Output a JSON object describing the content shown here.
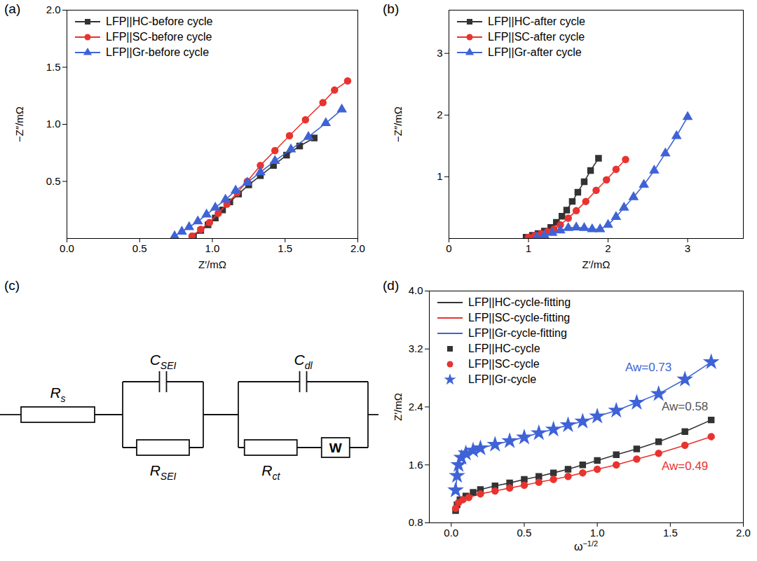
{
  "chart_data": [
    {
      "type": "line",
      "title": "(a)",
      "x_label": "Z′/mΩ",
      "y_label": "−Z″/mΩ",
      "xlim": [
        0,
        2.0
      ],
      "xticks": [
        {
          "value": 0,
          "label": "0.0"
        },
        0.5,
        {
          "value": 1,
          "label": "1.0"
        },
        1.5,
        {
          "value": 2,
          "label": "2.0"
        }
      ],
      "ylim": [
        0,
        2.0
      ],
      "yticks": [
        0.5,
        {
          "value": 1,
          "label": "1.0"
        },
        1.5,
        {
          "value": 2,
          "label": "2.0"
        }
      ],
      "legend": "top-left",
      "series": [
        {
          "name": "LFP||HC-before cycle",
          "color": "#333333",
          "marker": "square",
          "x": [
            0.87,
            0.92,
            0.97,
            1.02,
            1.07,
            1.12,
            1.18,
            1.25,
            1.33,
            1.42,
            1.51,
            1.6,
            1.7
          ],
          "values": [
            0.02,
            0.07,
            0.12,
            0.18,
            0.25,
            0.32,
            0.39,
            0.47,
            0.55,
            0.64,
            0.73,
            0.81,
            0.88
          ]
        },
        {
          "name": "LFP||SC-before cycle",
          "color": "#e8332f",
          "marker": "circle",
          "x": [
            0.86,
            0.92,
            0.98,
            1.04,
            1.1,
            1.17,
            1.24,
            1.33,
            1.43,
            1.53,
            1.64,
            1.76,
            1.84,
            1.93
          ],
          "values": [
            0.02,
            0.08,
            0.14,
            0.22,
            0.3,
            0.4,
            0.5,
            0.64,
            0.77,
            0.9,
            1.04,
            1.19,
            1.3,
            1.38
          ]
        },
        {
          "name": "LFP||Gr-before cycle",
          "color": "#3f63d6",
          "marker": "triangle",
          "x": [
            0.74,
            0.79,
            0.84,
            0.9,
            0.96,
            1.02,
            1.09,
            1.16,
            1.24,
            1.33,
            1.43,
            1.54,
            1.66,
            1.78,
            1.89
          ],
          "values": [
            0.02,
            0.06,
            0.1,
            0.15,
            0.21,
            0.27,
            0.34,
            0.42,
            0.49,
            0.58,
            0.68,
            0.78,
            0.89,
            1.01,
            1.13
          ]
        }
      ]
    },
    {
      "type": "line",
      "title": "(b)",
      "x_label": "Z′/mΩ",
      "y_label": "−Z″/mΩ",
      "xlim": [
        0,
        3.7
      ],
      "xticks": [
        0,
        1,
        2,
        3
      ],
      "ylim": [
        0,
        3.7
      ],
      "yticks": [
        1,
        2,
        3
      ],
      "legend": "top-left",
      "series": [
        {
          "name": "LFP||HC-after cycle",
          "color": "#333333",
          "marker": "square",
          "x": [
            0.97,
            1.05,
            1.12,
            1.2,
            1.28,
            1.35,
            1.42,
            1.48,
            1.55,
            1.62,
            1.7,
            1.78,
            1.88
          ],
          "values": [
            0.02,
            0.05,
            0.08,
            0.12,
            0.18,
            0.26,
            0.36,
            0.46,
            0.6,
            0.75,
            0.92,
            1.1,
            1.3
          ]
        },
        {
          "name": "LFP||SC-after cycle",
          "color": "#e8332f",
          "marker": "circle",
          "x": [
            1.0,
            1.08,
            1.16,
            1.24,
            1.32,
            1.4,
            1.5,
            1.6,
            1.72,
            1.85,
            1.98,
            2.1,
            2.22
          ],
          "values": [
            0.02,
            0.05,
            0.08,
            0.11,
            0.15,
            0.22,
            0.33,
            0.45,
            0.6,
            0.78,
            0.95,
            1.12,
            1.28
          ]
        },
        {
          "name": "LFP||Gr-after cycle",
          "color": "#3f63d6",
          "marker": "triangle",
          "x": [
            1.1,
            1.2,
            1.3,
            1.4,
            1.5,
            1.6,
            1.7,
            1.8,
            1.9,
            2.0,
            2.1,
            2.2,
            2.32,
            2.45,
            2.58,
            2.72,
            2.86,
            3.0
          ],
          "values": [
            0.02,
            0.05,
            0.09,
            0.13,
            0.17,
            0.18,
            0.17,
            0.15,
            0.15,
            0.22,
            0.35,
            0.5,
            0.67,
            0.87,
            1.1,
            1.38,
            1.66,
            1.97
          ]
        }
      ]
    },
    {
      "type": "scatter",
      "title": "(d)",
      "x_label": "ω−1/2",
      "y_label": "Z′/mΩ",
      "xlim": [
        -0.15,
        2.0
      ],
      "xticks": [
        {
          "value": 0,
          "label": "0.0"
        },
        0.5,
        {
          "value": 1,
          "label": "1.0"
        },
        1.5,
        {
          "value": 2,
          "label": "2.0"
        }
      ],
      "ylim": [
        0.8,
        4.0
      ],
      "yticks": [
        0.8,
        1.6,
        2.4,
        3.2,
        {
          "value": 4,
          "label": "4.0"
        }
      ],
      "legend": "top-left",
      "series": [
        {
          "name": "LFP||HC-cycle-fitting",
          "type": "line",
          "color": "#333333",
          "x": [
            0.03,
            0.04,
            0.06,
            0.1,
            0.15,
            0.2,
            0.3,
            0.4,
            0.5,
            0.6,
            0.7,
            0.8,
            0.9,
            1.0,
            1.13,
            1.27,
            1.42,
            1.6,
            1.78
          ],
          "values": [
            0.97,
            1.05,
            1.12,
            1.17,
            1.22,
            1.26,
            1.31,
            1.35,
            1.4,
            1.44,
            1.49,
            1.54,
            1.6,
            1.66,
            1.74,
            1.82,
            1.92,
            2.06,
            2.22
          ]
        },
        {
          "name": "LFP||SC-cycle-fitting",
          "type": "line",
          "color": "#e8332f",
          "x": [
            0.03,
            0.05,
            0.08,
            0.12,
            0.2,
            0.3,
            0.4,
            0.5,
            0.6,
            0.7,
            0.8,
            0.9,
            1.0,
            1.13,
            1.27,
            1.42,
            1.6,
            1.78
          ],
          "values": [
            1.0,
            1.08,
            1.12,
            1.15,
            1.2,
            1.24,
            1.28,
            1.32,
            1.36,
            1.4,
            1.44,
            1.49,
            1.54,
            1.6,
            1.68,
            1.76,
            1.87,
            1.99
          ]
        },
        {
          "name": "LFP||Gr-cycle-fitting",
          "type": "line",
          "color": "#3f63d6",
          "x": [
            0.03,
            0.04,
            0.05,
            0.07,
            0.1,
            0.15,
            0.2,
            0.3,
            0.4,
            0.5,
            0.6,
            0.7,
            0.8,
            0.9,
            1.0,
            1.13,
            1.27,
            1.42,
            1.6,
            1.78
          ],
          "values": [
            1.25,
            1.45,
            1.6,
            1.7,
            1.76,
            1.8,
            1.83,
            1.88,
            1.93,
            1.98,
            2.04,
            2.09,
            2.15,
            2.2,
            2.27,
            2.35,
            2.46,
            2.58,
            2.78,
            3.02
          ]
        },
        {
          "name": "LFP||HC-cycle",
          "type": "scatter",
          "color": "#333333",
          "marker": "square",
          "x": [
            0.03,
            0.04,
            0.06,
            0.1,
            0.15,
            0.2,
            0.3,
            0.4,
            0.5,
            0.6,
            0.7,
            0.8,
            0.9,
            1.0,
            1.13,
            1.27,
            1.42,
            1.6,
            1.78
          ],
          "values": [
            0.97,
            1.05,
            1.12,
            1.17,
            1.22,
            1.26,
            1.31,
            1.35,
            1.4,
            1.44,
            1.49,
            1.54,
            1.6,
            1.66,
            1.74,
            1.82,
            1.92,
            2.06,
            2.22
          ]
        },
        {
          "name": "LFP||SC-cycle",
          "type": "scatter",
          "color": "#e8332f",
          "marker": "circle",
          "x": [
            0.03,
            0.05,
            0.08,
            0.12,
            0.2,
            0.3,
            0.4,
            0.5,
            0.6,
            0.7,
            0.8,
            0.9,
            1.0,
            1.13,
            1.27,
            1.42,
            1.6,
            1.78
          ],
          "values": [
            1.0,
            1.08,
            1.12,
            1.15,
            1.2,
            1.24,
            1.28,
            1.32,
            1.36,
            1.4,
            1.44,
            1.49,
            1.54,
            1.6,
            1.68,
            1.76,
            1.87,
            1.99
          ]
        },
        {
          "name": "LFP||Gr-cycle",
          "type": "scatter",
          "color": "#3f63d6",
          "marker": "star",
          "x": [
            0.03,
            0.04,
            0.05,
            0.07,
            0.1,
            0.15,
            0.2,
            0.3,
            0.4,
            0.5,
            0.6,
            0.7,
            0.8,
            0.9,
            1.0,
            1.13,
            1.27,
            1.42,
            1.6,
            1.78
          ],
          "values": [
            1.25,
            1.45,
            1.6,
            1.7,
            1.76,
            1.8,
            1.83,
            1.88,
            1.93,
            1.98,
            2.04,
            2.09,
            2.15,
            2.2,
            2.27,
            2.35,
            2.46,
            2.58,
            2.78,
            3.02
          ]
        }
      ],
      "annotations": [
        {
          "text": "Aw=0.73",
          "x": 1.35,
          "y": 2.95,
          "color": "#3f63d6"
        },
        {
          "text": "Aw=0.58",
          "x": 1.6,
          "y": 2.4,
          "color": "#555555"
        },
        {
          "text": "Aw=0.49",
          "x": 1.6,
          "y": 1.58,
          "color": "#e8332f"
        }
      ]
    }
  ],
  "diagram": {
    "title": "(c)",
    "elements": [
      {
        "type": "resistor",
        "symbol": "R",
        "subscript": "s"
      },
      {
        "type": "parallel",
        "branches": [
          [
            {
              "type": "capacitor",
              "symbol": "C",
              "subscript": "SEI"
            }
          ],
          [
            {
              "type": "resistor",
              "symbol": "R",
              "subscript": "SEI"
            }
          ]
        ]
      },
      {
        "type": "parallel",
        "branches": [
          [
            {
              "type": "capacitor",
              "symbol": "C",
              "subscript": "dl"
            }
          ],
          [
            {
              "type": "resistor",
              "symbol": "R",
              "subscript": "ct"
            },
            {
              "type": "warburg",
              "symbol": "W"
            }
          ]
        ]
      }
    ]
  }
}
